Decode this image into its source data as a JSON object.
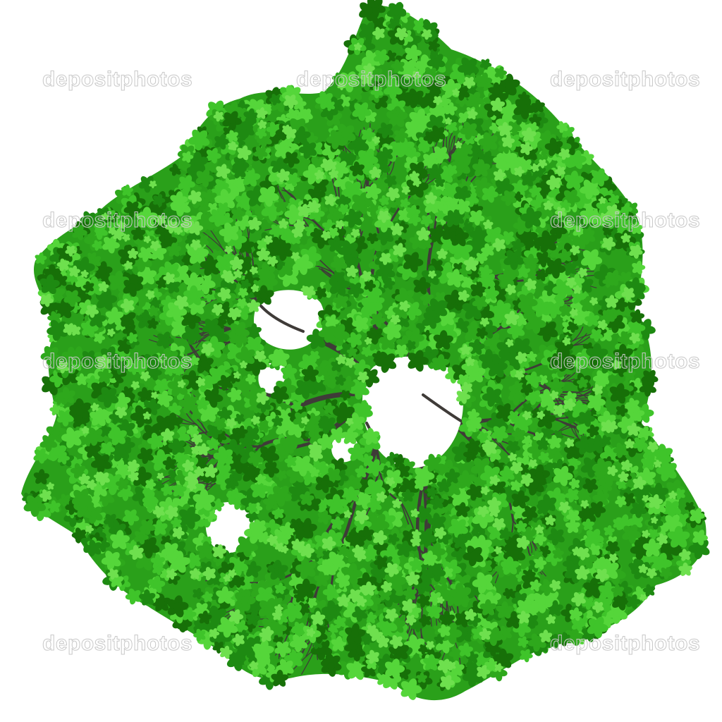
{
  "image": {
    "subject": "tree-canopy-top-view",
    "background_color": "#ffffff",
    "foliage_colors": [
      "#1e8a12",
      "#2ea81c",
      "#3fc42a",
      "#55d63a",
      "#177008"
    ],
    "branch_color": "#3f3b38"
  },
  "watermark": {
    "text": "depositphotos",
    "color": "#c8c8c8"
  }
}
